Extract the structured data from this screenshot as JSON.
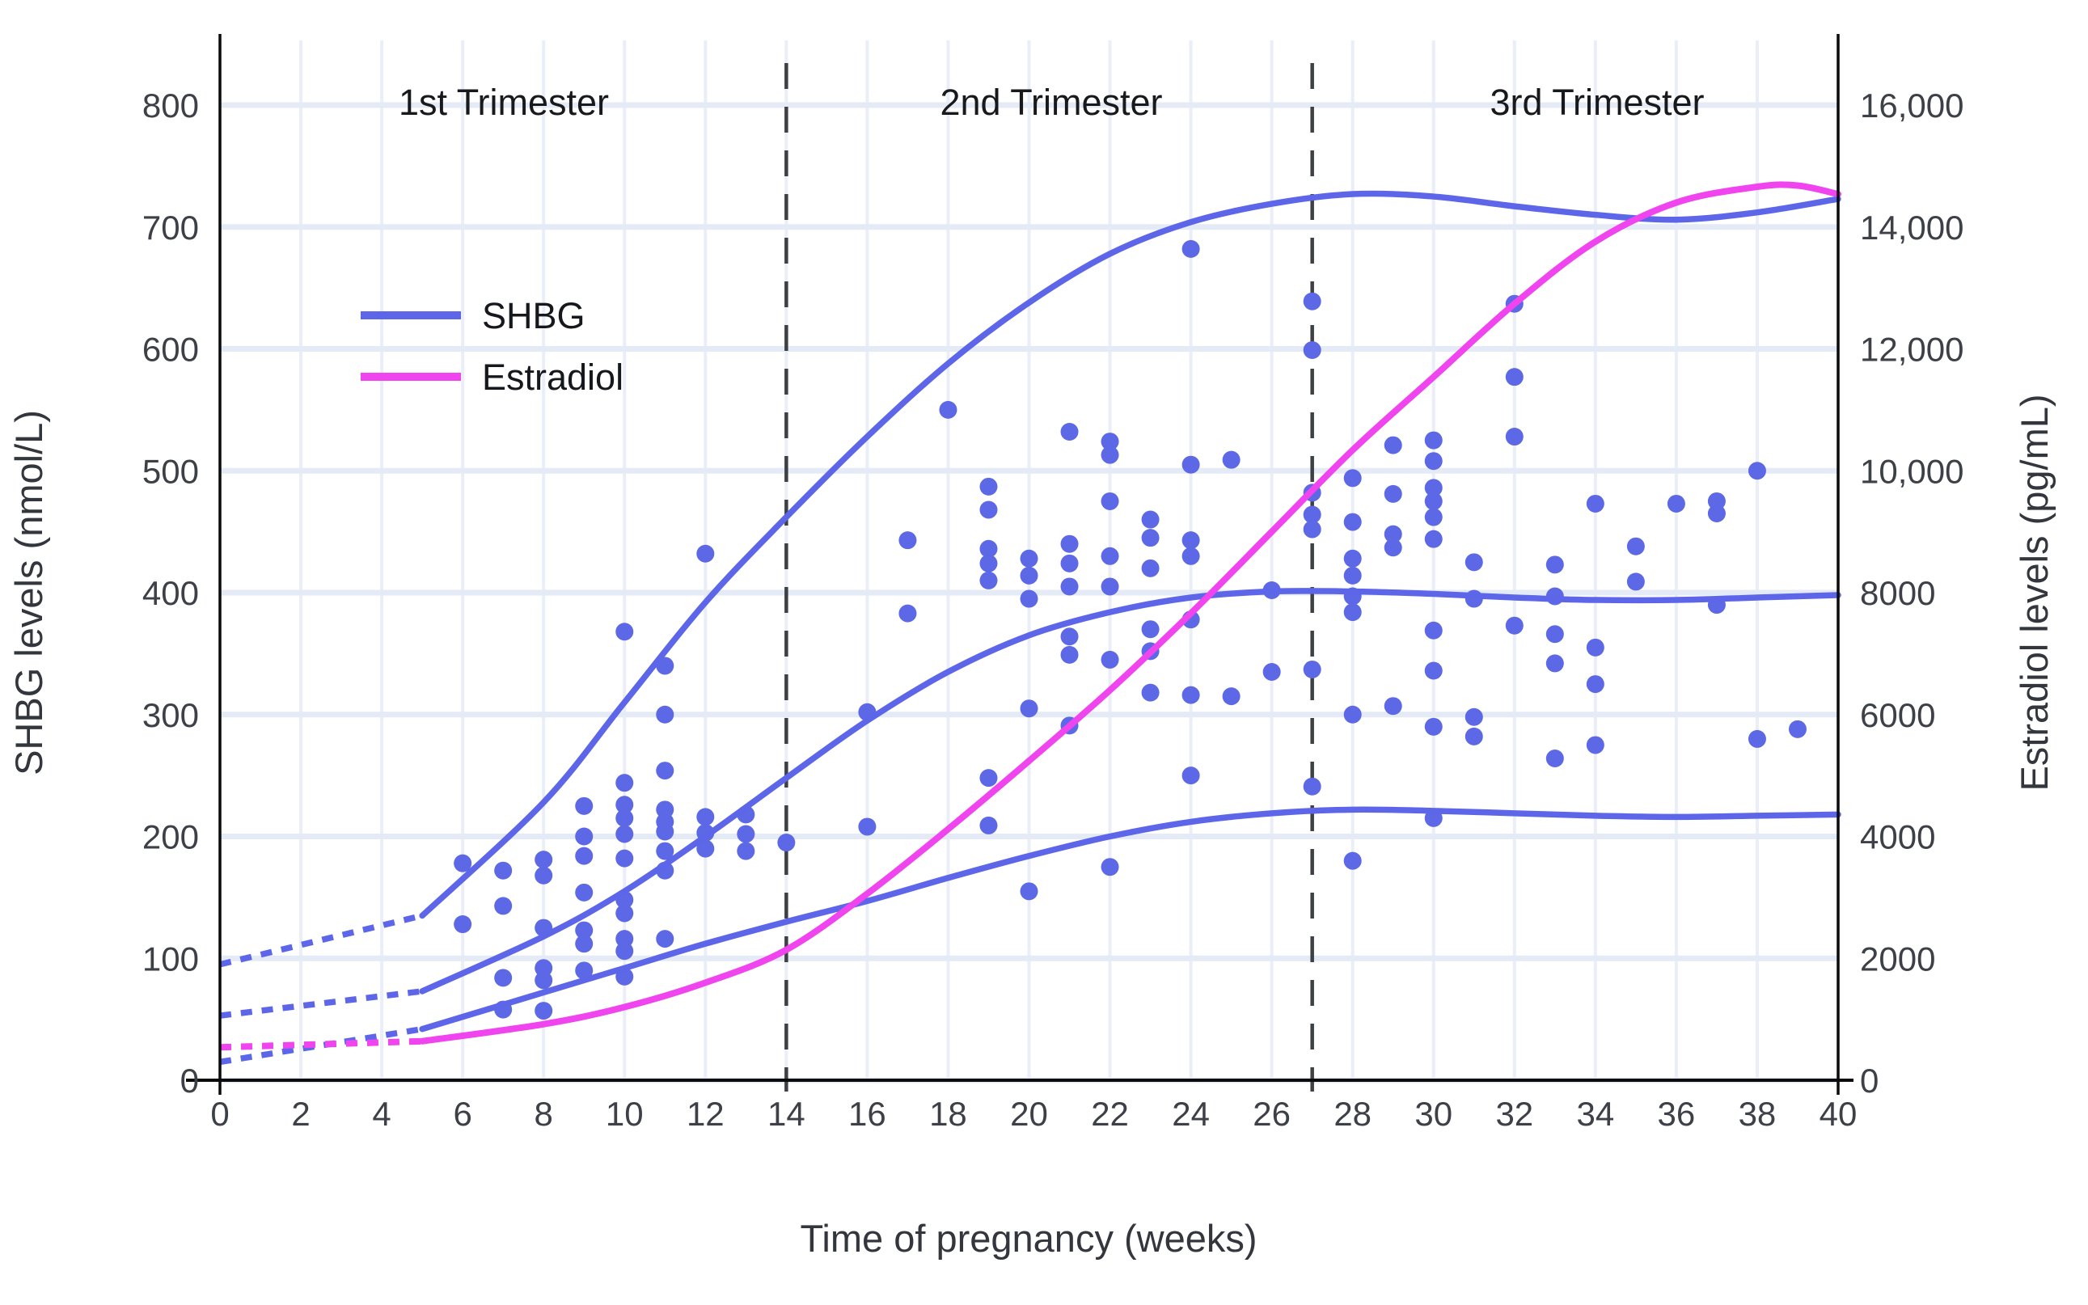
{
  "figure": {
    "kind": "static scientific chart",
    "background": "#ffffff"
  },
  "trimesters": [
    "1st Trimester",
    "2nd Trimester",
    "3rd Trimester"
  ],
  "axes": {
    "x_label": "Time of pregnancy (weeks)",
    "y_left_label": "SHBG levels (nmol/L)",
    "y_right_label": "Estradiol levels (pg/mL)",
    "x_ticks": [
      0,
      2,
      4,
      6,
      8,
      10,
      12,
      14,
      16,
      18,
      20,
      22,
      24,
      26,
      28,
      30,
      32,
      34,
      36,
      38,
      40
    ],
    "y_left_ticks": [
      0,
      100,
      200,
      300,
      400,
      500,
      600,
      700,
      800
    ],
    "y_right_ticks": [
      {
        "value": 0,
        "label": "0"
      },
      {
        "value": 2000,
        "label": "2000"
      },
      {
        "value": 4000,
        "label": "4000"
      },
      {
        "value": 6000,
        "label": "6000"
      },
      {
        "value": 8000,
        "label": "8000"
      },
      {
        "value": 10000,
        "label": "10,000"
      },
      {
        "value": 12000,
        "label": "12,000"
      },
      {
        "value": 14000,
        "label": "14,000"
      },
      {
        "value": 16000,
        "label": "16,000"
      }
    ]
  },
  "legend": [
    {
      "label": "SHBG",
      "color": "#5d66e9"
    },
    {
      "label": "Estradiol",
      "color": "#f044ee"
    }
  ],
  "colors": {
    "shbg_line": "#5d66e9",
    "shbg_dot": "#5c68e6",
    "estradiol_line": "#f044ee",
    "grid_horizontal": "#e4eaf6",
    "grid_vertical": "#eaeef8",
    "axis_line": "#0b0b0b",
    "divider_line": "#3d4044",
    "tick_text": "#3d4147"
  },
  "chart_data": {
    "type": "scatter+line",
    "title": "",
    "xlabel": "Time of pregnancy (weeks)",
    "ylabel_left": "SHBG levels (nmol/L)",
    "ylabel_right": "Estradiol levels (pg/mL)",
    "x_range_weeks": [
      0,
      40
    ],
    "y_left_range_nmol_L": [
      0,
      800
    ],
    "y_right_range_pg_mL": [
      0,
      16000
    ],
    "grid": true,
    "legend_position": "upper left inside",
    "annotations": [
      "1st Trimester",
      "2nd Trimester",
      "3rd Trimester"
    ],
    "trimester_divider_weeks": [
      14,
      27
    ],
    "series": [
      {
        "name": "SHBG upper reference curve (97.5th percentile)",
        "axis": "left",
        "color": "#5d66e9",
        "width": 7.5,
        "lead_in_dotted": [
          [
            0,
            95
          ],
          [
            5,
            135
          ]
        ],
        "points": [
          [
            5,
            135
          ],
          [
            8,
            228
          ],
          [
            10,
            310
          ],
          [
            12,
            392
          ],
          [
            14,
            462
          ],
          [
            16,
            528
          ],
          [
            18,
            588
          ],
          [
            20,
            638
          ],
          [
            22,
            678
          ],
          [
            24,
            704
          ],
          [
            26,
            719
          ],
          [
            28,
            727
          ],
          [
            30,
            725
          ],
          [
            32,
            717
          ],
          [
            34,
            710
          ],
          [
            36,
            706
          ],
          [
            38,
            712
          ],
          [
            40,
            723
          ]
        ]
      },
      {
        "name": "SHBG median reference curve",
        "axis": "left",
        "color": "#5d66e9",
        "width": 7.5,
        "lead_in_dotted": [
          [
            0,
            53
          ],
          [
            5,
            73
          ]
        ],
        "points": [
          [
            5,
            73
          ],
          [
            8,
            118
          ],
          [
            10,
            155
          ],
          [
            12,
            200
          ],
          [
            14,
            248
          ],
          [
            16,
            295
          ],
          [
            18,
            335
          ],
          [
            20,
            365
          ],
          [
            22,
            384
          ],
          [
            24,
            396
          ],
          [
            26,
            401
          ],
          [
            28,
            401
          ],
          [
            30,
            399
          ],
          [
            32,
            396
          ],
          [
            34,
            394
          ],
          [
            36,
            394
          ],
          [
            38,
            396
          ],
          [
            40,
            398
          ]
        ]
      },
      {
        "name": "SHBG lower reference curve (2.5th percentile)",
        "axis": "left",
        "color": "#5d66e9",
        "width": 7.5,
        "lead_in_dotted": [
          [
            0,
            15
          ],
          [
            5,
            42
          ]
        ],
        "points": [
          [
            5,
            42
          ],
          [
            8,
            72
          ],
          [
            10,
            92
          ],
          [
            12,
            112
          ],
          [
            14,
            130
          ],
          [
            16,
            147
          ],
          [
            18,
            166
          ],
          [
            20,
            184
          ],
          [
            22,
            200
          ],
          [
            24,
            212
          ],
          [
            26,
            219
          ],
          [
            28,
            222
          ],
          [
            30,
            221
          ],
          [
            32,
            219
          ],
          [
            34,
            217
          ],
          [
            36,
            216
          ],
          [
            38,
            217
          ],
          [
            40,
            218
          ]
        ]
      },
      {
        "name": "Estradiol",
        "axis": "right",
        "color": "#f044ee",
        "width": 8,
        "lead_in_dotted": [
          [
            0,
            540
          ],
          [
            5,
            640
          ]
        ],
        "points": [
          [
            5,
            640
          ],
          [
            8,
            920
          ],
          [
            10,
            1200
          ],
          [
            12,
            1600
          ],
          [
            14,
            2140
          ],
          [
            16,
            3060
          ],
          [
            18,
            4120
          ],
          [
            20,
            5240
          ],
          [
            22,
            6400
          ],
          [
            24,
            7660
          ],
          [
            26,
            9000
          ],
          [
            28,
            10340
          ],
          [
            30,
            11540
          ],
          [
            32,
            12740
          ],
          [
            34,
            13760
          ],
          [
            36,
            14400
          ],
          [
            38,
            14660
          ],
          [
            39,
            14680
          ],
          [
            40,
            14540
          ]
        ]
      }
    ],
    "scatter": {
      "name": "SHBG individual measurements",
      "axis": "left",
      "color": "#5c68e6",
      "radius": 11,
      "points": [
        [
          6,
          178
        ],
        [
          6,
          128
        ],
        [
          7,
          172
        ],
        [
          7,
          143
        ],
        [
          7,
          84
        ],
        [
          7,
          58
        ],
        [
          8,
          181
        ],
        [
          8,
          168
        ],
        [
          8,
          125
        ],
        [
          8,
          92
        ],
        [
          8,
          82
        ],
        [
          8,
          57
        ],
        [
          9,
          225
        ],
        [
          9,
          200
        ],
        [
          9,
          184
        ],
        [
          9,
          154
        ],
        [
          9,
          123
        ],
        [
          9,
          112
        ],
        [
          9,
          90
        ],
        [
          10,
          368
        ],
        [
          10,
          244
        ],
        [
          10,
          226
        ],
        [
          10,
          215
        ],
        [
          10,
          202
        ],
        [
          10,
          182
        ],
        [
          10,
          148
        ],
        [
          10,
          137
        ],
        [
          10,
          116
        ],
        [
          10,
          106
        ],
        [
          10,
          85
        ],
        [
          11,
          340
        ],
        [
          11,
          300
        ],
        [
          11,
          254
        ],
        [
          11,
          222
        ],
        [
          11,
          212
        ],
        [
          11,
          204
        ],
        [
          11,
          188
        ],
        [
          11,
          172
        ],
        [
          11,
          116
        ],
        [
          12,
          432
        ],
        [
          12,
          216
        ],
        [
          12,
          203
        ],
        [
          12,
          190
        ],
        [
          13,
          218
        ],
        [
          13,
          202
        ],
        [
          13,
          188
        ],
        [
          14,
          195
        ],
        [
          16,
          302
        ],
        [
          16,
          208
        ],
        [
          17,
          443
        ],
        [
          17,
          383
        ],
        [
          18,
          550
        ],
        [
          19,
          487
        ],
        [
          19,
          468
        ],
        [
          19,
          436
        ],
        [
          19,
          424
        ],
        [
          19,
          410
        ],
        [
          19,
          248
        ],
        [
          19,
          209
        ],
        [
          20,
          428
        ],
        [
          20,
          414
        ],
        [
          20,
          395
        ],
        [
          20,
          305
        ],
        [
          20,
          155
        ],
        [
          21,
          532
        ],
        [
          21,
          440
        ],
        [
          21,
          424
        ],
        [
          21,
          405
        ],
        [
          21,
          364
        ],
        [
          21,
          349
        ],
        [
          21,
          291
        ],
        [
          22,
          524
        ],
        [
          22,
          513
        ],
        [
          22,
          475
        ],
        [
          22,
          430
        ],
        [
          22,
          405
        ],
        [
          22,
          345
        ],
        [
          22,
          175
        ],
        [
          23,
          460
        ],
        [
          23,
          445
        ],
        [
          23,
          420
        ],
        [
          23,
          370
        ],
        [
          23,
          352
        ],
        [
          23,
          318
        ],
        [
          24,
          682
        ],
        [
          24,
          505
        ],
        [
          24,
          443
        ],
        [
          24,
          430
        ],
        [
          24,
          378
        ],
        [
          24,
          316
        ],
        [
          24,
          250
        ],
        [
          25,
          509
        ],
        [
          25,
          315
        ],
        [
          26,
          402
        ],
        [
          26,
          335
        ],
        [
          27,
          639
        ],
        [
          27,
          599
        ],
        [
          27,
          482
        ],
        [
          27,
          464
        ],
        [
          27,
          452
        ],
        [
          27,
          337
        ],
        [
          27,
          241
        ],
        [
          28,
          494
        ],
        [
          28,
          458
        ],
        [
          28,
          428
        ],
        [
          28,
          414
        ],
        [
          28,
          397
        ],
        [
          28,
          384
        ],
        [
          28,
          300
        ],
        [
          28,
          180
        ],
        [
          29,
          521
        ],
        [
          29,
          481
        ],
        [
          29,
          448
        ],
        [
          29,
          437
        ],
        [
          29,
          307
        ],
        [
          30,
          525
        ],
        [
          30,
          508
        ],
        [
          30,
          486
        ],
        [
          30,
          475
        ],
        [
          30,
          462
        ],
        [
          30,
          444
        ],
        [
          30,
          369
        ],
        [
          30,
          336
        ],
        [
          30,
          290
        ],
        [
          30,
          215
        ],
        [
          31,
          425
        ],
        [
          31,
          395
        ],
        [
          31,
          298
        ],
        [
          31,
          282
        ],
        [
          32,
          637
        ],
        [
          32,
          577
        ],
        [
          32,
          528
        ],
        [
          32,
          373
        ],
        [
          33,
          423
        ],
        [
          33,
          397
        ],
        [
          33,
          366
        ],
        [
          33,
          342
        ],
        [
          33,
          264
        ],
        [
          34,
          473
        ],
        [
          34,
          355
        ],
        [
          34,
          325
        ],
        [
          34,
          275
        ],
        [
          35,
          438
        ],
        [
          35,
          409
        ],
        [
          36,
          473
        ],
        [
          37,
          475
        ],
        [
          37,
          465
        ],
        [
          37,
          390
        ],
        [
          38,
          500
        ],
        [
          38,
          280
        ],
        [
          39,
          288
        ]
      ]
    }
  }
}
